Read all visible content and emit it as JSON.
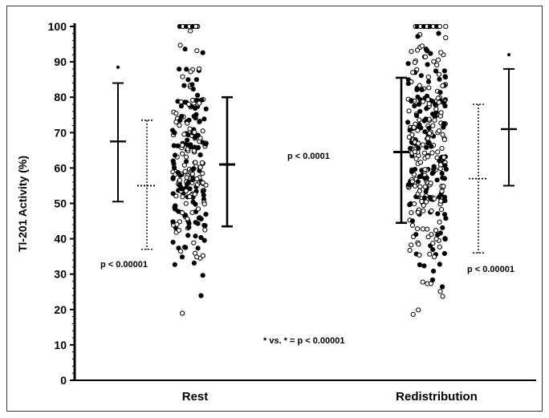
{
  "chart_data": {
    "type": "scatter",
    "ylabel": "Tl-201 Activity (%)",
    "ylim": [
      0,
      100
    ],
    "yticks": [
      0,
      10,
      20,
      30,
      40,
      50,
      60,
      70,
      80,
      90,
      100
    ],
    "categories": [
      "Rest",
      "Redistribution"
    ],
    "groups": [
      {
        "category": "Rest",
        "summary_bars": [
          {
            "style": "solid",
            "mean": 67.5,
            "low": 50.5,
            "high": 84,
            "marker": "*",
            "marker_y": 88.5
          },
          {
            "style": "dotted",
            "mean": 55,
            "low": 37,
            "high": 73.5
          },
          {
            "style": "solid-thick",
            "mean": 61,
            "low": 43.5,
            "high": 80
          }
        ]
      },
      {
        "category": "Redistribution",
        "summary_bars": [
          {
            "style": "solid-thick",
            "mean": 64.5,
            "low": 44.5,
            "high": 85.5
          },
          {
            "style": "dotted",
            "mean": 57,
            "low": 36,
            "high": 78
          },
          {
            "style": "solid",
            "mean": 71,
            "low": 55,
            "high": 88,
            "marker": "*",
            "marker_y": 92
          }
        ]
      }
    ],
    "annotations": {
      "p_rest": "p < 0.00001",
      "p_middle": "p < 0.0001",
      "p_redistribution": "p < 0.00001",
      "footnote": "* vs. * = p < 0.00001"
    }
  }
}
